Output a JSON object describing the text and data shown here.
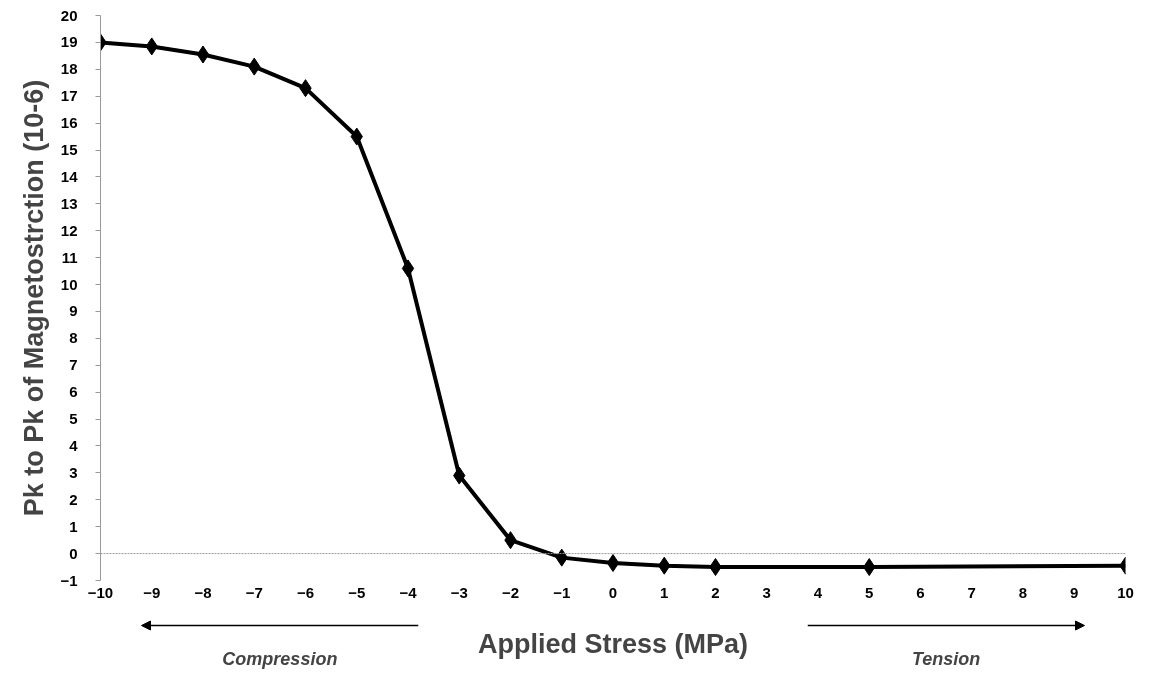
{
  "chart_data": {
    "type": "line",
    "xlabel": "Applied Stress (MPa)",
    "ylabel": "Pk to Pk of Magnetostrction (10-6)",
    "x": [
      -10,
      -9,
      -8,
      -7,
      -6,
      -5,
      -4,
      -3,
      -2,
      -1,
      0,
      1,
      2,
      5,
      10
    ],
    "series": [
      {
        "color": "#000000",
        "values": [
          19.0,
          18.85,
          18.55,
          18.1,
          17.3,
          15.5,
          10.6,
          2.9,
          0.5,
          -0.15,
          -0.35,
          -0.45,
          -0.5,
          -0.5,
          -0.45
        ]
      }
    ],
    "xlim": [
      -10,
      10
    ],
    "xticks": [
      -10,
      -9,
      -8,
      -7,
      -6,
      -5,
      -4,
      -3,
      -2,
      -1,
      0,
      1,
      2,
      3,
      4,
      5,
      6,
      7,
      8,
      9,
      10
    ],
    "ylim": [
      -1,
      20
    ],
    "yticks": [
      -1,
      0,
      1,
      2,
      3,
      4,
      5,
      6,
      7,
      8,
      9,
      10,
      11,
      12,
      13,
      14,
      15,
      16,
      17,
      18,
      19,
      20
    ],
    "grid": false,
    "ref_lines": [
      {
        "axis": "y",
        "value": 0,
        "color": "#999999",
        "line_style": "dotted"
      }
    ],
    "marker": "diamond",
    "line_style": "solid",
    "annotations": [
      "Compression",
      "Tension"
    ]
  }
}
